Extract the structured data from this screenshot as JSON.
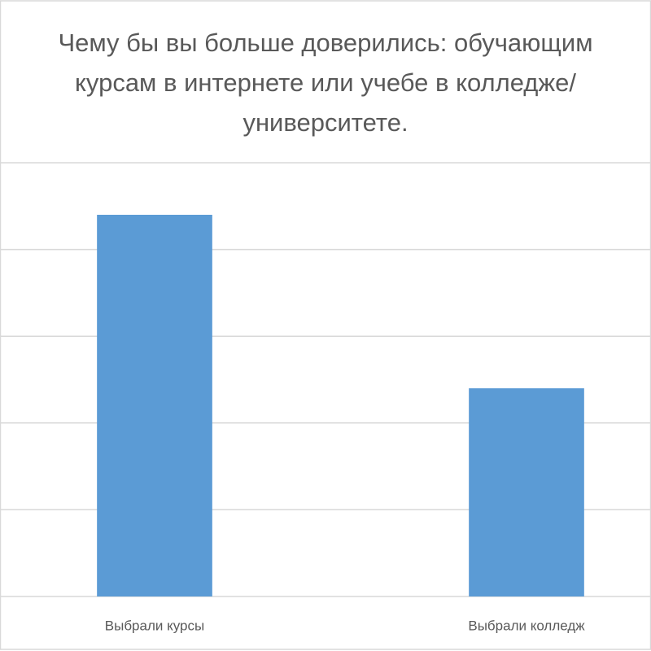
{
  "chart_data": {
    "type": "bar",
    "title": "Чему бы вы больше доверились: обучающим курсам в интернете или учебе в колледже/университете.",
    "categories": [
      "Выбрали курсы",
      "Выбрали колледж"
    ],
    "values": [
      4.4,
      2.4
    ],
    "color": "#5b9bd5",
    "ylim": [
      0,
      5
    ],
    "yticks": [
      0,
      1,
      2,
      3,
      4,
      5
    ],
    "grid": true
  }
}
